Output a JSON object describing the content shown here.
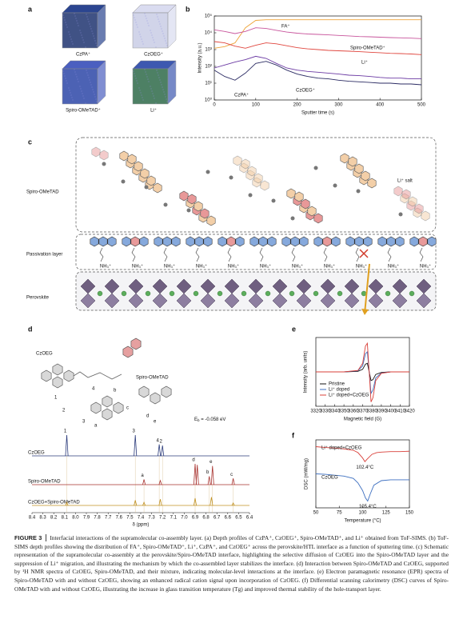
{
  "panel_letters": [
    "a",
    "b",
    "c",
    "d",
    "e",
    "f"
  ],
  "tof_sims_cubes": [
    "CzPA⁺",
    "CzOEG⁺",
    "Spiro-OMeTAD⁺",
    "Li⁺"
  ],
  "schematic": {
    "layers": [
      "Spiro-OMeTAD",
      "Passivation layer",
      "Perovskite"
    ],
    "salt_label": "Li⁺ salt",
    "ammonium": "NH₃⁺"
  },
  "molecule": {
    "czoeg": "CzOEG",
    "spiro": "Spiro-OMeTAD",
    "atom_labels": [
      "1",
      "4",
      "2",
      "3",
      "a",
      "b",
      "c",
      "d",
      "e"
    ],
    "binding_energy": {
      "symbol": "E",
      "subscript": "b",
      "text": " = -0.058 eV"
    }
  },
  "chart_data": [
    {
      "type": "line",
      "log_y": true,
      "x_label": "Sputter time (s)",
      "y_label": "Intensity (a.u.)",
      "xlim": [
        0,
        500
      ],
      "ylim": [
        1,
        100000
      ],
      "xticks": [
        0,
        100,
        200,
        300,
        400,
        500
      ],
      "yticks": [
        {
          "value": 1,
          "label": "10⁰"
        },
        {
          "value": 10,
          "label": "10¹"
        },
        {
          "value": 100,
          "label": "10²"
        },
        {
          "value": 1000,
          "label": "10³"
        },
        {
          "value": 10000,
          "label": "10⁴"
        },
        {
          "value": 100000,
          "label": "10⁵"
        }
      ],
      "x": [
        0,
        25,
        50,
        75,
        100,
        125,
        150,
        175,
        200,
        225,
        250,
        275,
        300,
        325,
        350,
        375,
        400,
        425,
        450,
        475,
        500
      ],
      "series": [
        {
          "name": "FA⁺",
          "color": "#eea43a",
          "values": [
            1200,
            1500,
            2500,
            20000,
            55000,
            60000,
            60000,
            60000,
            60000,
            60000,
            60000,
            60000,
            60000,
            60000,
            60000,
            60000,
            60000,
            60000,
            60000,
            60000,
            60000
          ]
        },
        {
          "name": "Spiro-OMeTAD⁺",
          "color": "#c8559c",
          "values": [
            15000,
            12000,
            9000,
            12000,
            20000,
            18000,
            14000,
            11000,
            9500,
            8500,
            8000,
            7500,
            7000,
            6500,
            6000,
            5800,
            5500,
            5200,
            5000,
            4800,
            4500
          ]
        },
        {
          "name": "Li⁺",
          "color": "#e0473f",
          "values": [
            3000,
            2500,
            1600,
            1200,
            1800,
            2500,
            2200,
            1700,
            1300,
            1100,
            1000,
            900,
            850,
            800,
            750,
            700,
            650,
            600,
            580,
            550,
            500
          ]
        },
        {
          "name": "CzPA⁺",
          "color": "#2b2b63",
          "values": [
            60,
            25,
            15,
            40,
            150,
            200,
            120,
            60,
            35,
            25,
            20,
            18,
            15,
            13,
            12,
            11,
            10,
            10,
            9,
            9,
            8
          ]
        },
        {
          "name": "CzOEG⁺",
          "color": "#6b3aa3",
          "values": [
            80,
            120,
            180,
            250,
            400,
            300,
            150,
            80,
            60,
            50,
            45,
            40,
            35,
            30,
            28,
            25,
            22,
            20,
            20,
            18,
            18
          ]
        }
      ]
    },
    {
      "type": "nmr",
      "x_label": "δ (ppm)",
      "xlim": [
        8.4,
        6.4
      ],
      "xticks": [
        8.4,
        8.3,
        8.2,
        8.1,
        {
          "value": 8,
          "label": "8.0"
        },
        7.9,
        7.8,
        7.7,
        7.6,
        7.5,
        7.4,
        7.3,
        7.2,
        7.1,
        {
          "value": 7,
          "label": "7.0"
        },
        6.9,
        6.8,
        6.7,
        6.6,
        6.5,
        6.4
      ],
      "series": [
        {
          "name": "CzOEG",
          "color": "#2a3a7a",
          "peaks": [
            {
              "x": 8.08,
              "height": 1,
              "label": "1"
            },
            {
              "x": 7.45,
              "height": 1,
              "label": "3"
            },
            {
              "x": 7.23,
              "height": 0.55,
              "label": "4"
            },
            {
              "x": 7.2,
              "height": 0.5,
              "label": "2"
            }
          ]
        },
        {
          "name": "Spiro-OMeTAD",
          "color": "#a8322e",
          "peaks": [
            {
              "x": 7.37,
              "height": 0.25,
              "label": "a"
            },
            {
              "x": 7.22,
              "height": 0.2
            },
            {
              "x": 6.9,
              "height": 1,
              "label": "d"
            },
            {
              "x": 6.88,
              "height": 0.95
            },
            {
              "x": 6.77,
              "height": 0.4,
              "label": "b"
            },
            {
              "x": 6.74,
              "height": 0.9,
              "label": "e"
            },
            {
              "x": 6.55,
              "height": 0.3,
              "label": "c"
            }
          ]
        },
        {
          "name": "CzOEG+Spiro-OMeTAD",
          "color": "#c09020",
          "peaks": [
            {
              "x": 8.08,
              "height": 0.15
            },
            {
              "x": 7.45,
              "height": 0.25
            },
            {
              "x": 7.37,
              "height": 0.15
            },
            {
              "x": 7.22,
              "height": 0.3
            },
            {
              "x": 6.9,
              "height": 0.35
            },
            {
              "x": 6.75,
              "height": 0.4
            },
            {
              "x": 6.55,
              "height": 0.12
            }
          ]
        }
      ]
    },
    {
      "type": "line",
      "x_label": "Magnetic field (G)",
      "y_label": "Intensity (arb. units)",
      "legend": "lower left",
      "xlim": [
        3320,
        3420
      ],
      "ylim": [
        -1.2,
        1.2
      ],
      "xticks": [
        3320,
        3330,
        3340,
        3350,
        3360,
        3370,
        3380,
        3390,
        3400,
        3410,
        3420
      ],
      "x": [
        3320,
        3350,
        3365,
        3370,
        3373,
        3375,
        3377,
        3379,
        3381,
        3384,
        3390,
        3400,
        3420
      ],
      "series": [
        {
          "name": "Pristine",
          "color": "#111111",
          "values": [
            0,
            0,
            0.02,
            0.09,
            0.27,
            0.3,
            0,
            -0.3,
            -0.27,
            -0.09,
            -0.02,
            0,
            0
          ]
        },
        {
          "name": "Li⁺ doped",
          "color": "#3d6fc0",
          "values": [
            0,
            0,
            0.04,
            0.21,
            0.63,
            0.7,
            0,
            -0.75,
            -0.63,
            -0.21,
            -0.04,
            0,
            0
          ]
        },
        {
          "name": "Li⁺ doped+CzOEG",
          "color": "#d9403a",
          "values": [
            0,
            0,
            0.05,
            0.3,
            0.9,
            1,
            0,
            -1.05,
            -0.9,
            -0.3,
            -0.05,
            0,
            0
          ]
        }
      ]
    },
    {
      "type": "line",
      "x_label": "Temperature (°C)",
      "y_label": "DSC (mW/mg)",
      "xlim": [
        50,
        150
      ],
      "ylim": [
        -0.5,
        1.0
      ],
      "xticks": [
        50,
        75,
        100,
        125,
        150
      ],
      "series": [
        {
          "name": "Li⁺ doped+CzOEG",
          "color": "#d9403a",
          "annotation": "102.4°C",
          "x": [
            50,
            60,
            70,
            80,
            90,
            95,
            100,
            102.4,
            105,
            110,
            115,
            120,
            130,
            140,
            150
          ],
          "values": [
            0.85,
            0.83,
            0.82,
            0.8,
            0.77,
            0.72,
            0.6,
            0.52,
            0.58,
            0.68,
            0.72,
            0.73,
            0.74,
            0.74,
            0.75
          ]
        },
        {
          "name": "CzOEG",
          "color": "#3d6fc0",
          "annotation": "105.4°C",
          "x": [
            50,
            60,
            70,
            80,
            90,
            95,
            100,
            103,
            105.4,
            108,
            112,
            120,
            130,
            140,
            150
          ],
          "values": [
            0.25,
            0.24,
            0.22,
            0.2,
            0.15,
            0.05,
            -0.12,
            -0.28,
            -0.35,
            -0.2,
            0,
            0.1,
            0.12,
            0.12,
            0.12
          ]
        }
      ]
    }
  ],
  "caption": {
    "label": "FIGURE 3",
    "text": "Interfacial interactions of the supramolecular co-assembly layer. (a) Depth profiles of CzPA⁺, CzOEG⁺, Spiro-OMeTAD⁺, and Li⁺ obtained from ToF-SIMS. (b) ToF-SIMS depth profiles showing the distribution of FA⁺, Spiro-OMeTAD⁺, Li⁺, CzPA⁺, and CzOEG⁺ across the perovskite/HTL interface as a function of sputtering time. (c) Schematic representation of the supramolecular co-assembly at the perovskite/Spiro-OMeTAD interface, highlighting the selective diffusion of CzOEG into the Spiro-OMeTAD layer and the suppression of Li⁺ migration, and illustrating the mechanism by which the co-assembled layer stabilizes the interface. (d) Interaction between Spiro-OMeTAD and CzOEG, supported by ¹H NMR spectra of CzOEG, Spiro-OMeTAD, and their mixture, indicating molecular-level interactions at the interface. (e) Electron paramagnetic resonance (EPR) spectra of Spiro-OMeTAD with and without CzOEG, showing an enhanced radical cation signal upon incorporation of CzOEG. (f) Differential scanning calorimetry (DSC) curves of Spiro-OMeTAD with and without CzOEG, illustrating the increase in glass transition temperature (Tg) and improved thermal stability of the hole-transport layer."
  }
}
